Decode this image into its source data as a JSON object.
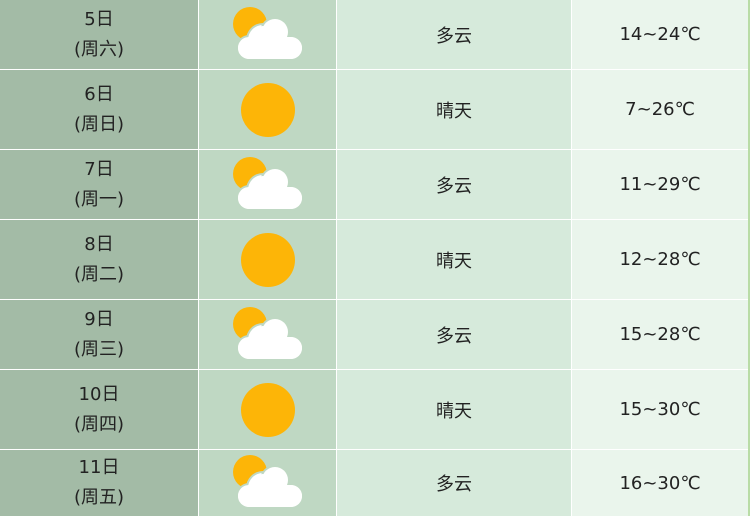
{
  "rows": [
    {
      "date": "5日",
      "weekday": "(周六)",
      "icon": "partly-cloudy-icon",
      "weather": "多云",
      "temp": "14~24℃"
    },
    {
      "date": "6日",
      "weekday": "(周日)",
      "icon": "sun-icon",
      "weather": "晴天",
      "temp": "7~26℃"
    },
    {
      "date": "7日",
      "weekday": "(周一)",
      "icon": "partly-cloudy-icon",
      "weather": "多云",
      "temp": "11~29℃"
    },
    {
      "date": "8日",
      "weekday": "(周二)",
      "icon": "sun-icon",
      "weather": "晴天",
      "temp": "12~28℃"
    },
    {
      "date": "9日",
      "weekday": "(周三)",
      "icon": "partly-cloudy-icon",
      "weather": "多云",
      "temp": "15~28℃"
    },
    {
      "date": "10日",
      "weekday": "(周四)",
      "icon": "sun-icon",
      "weather": "晴天",
      "temp": "15~30℃"
    },
    {
      "date": "11日",
      "weekday": "(周五)",
      "icon": "partly-cloudy-icon",
      "weather": "多云",
      "temp": "16~30℃"
    }
  ],
  "colors": {
    "sun": "#fdb507",
    "cloud": "#ffffff",
    "col_date": "#a3bba6",
    "col_icon": "#bfd8c3",
    "col_weather": "#d6eadb",
    "col_temp": "#eaf5ec"
  }
}
